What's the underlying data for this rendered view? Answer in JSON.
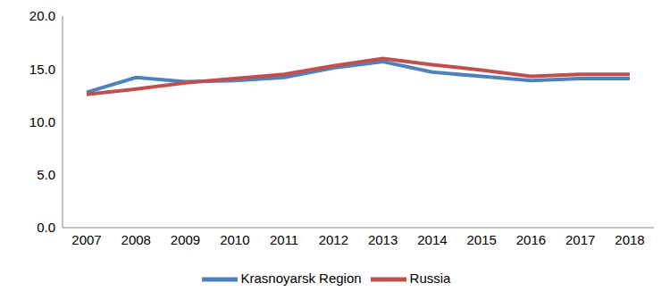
{
  "chart_data": {
    "type": "line",
    "categories": [
      "2007",
      "2008",
      "2009",
      "2010",
      "2011",
      "2012",
      "2013",
      "2014",
      "2015",
      "2016",
      "2017",
      "2018"
    ],
    "series": [
      {
        "name": "Krasnoyarsk Region",
        "color": "#4f81bd",
        "values": [
          12.8,
          14.2,
          13.8,
          13.9,
          14.2,
          15.1,
          15.7,
          14.7,
          14.3,
          13.9,
          14.1,
          14.1
        ]
      },
      {
        "name": "Russia",
        "color": "#c0504d",
        "values": [
          12.6,
          13.1,
          13.7,
          14.1,
          14.5,
          15.3,
          16.0,
          15.4,
          14.9,
          14.3,
          14.5,
          14.5
        ]
      }
    ],
    "ylim": [
      0,
      20
    ],
    "yticks": [
      {
        "value": 0,
        "label": "0.0"
      },
      {
        "value": 5,
        "label": "5.0"
      },
      {
        "value": 10,
        "label": "10.0"
      },
      {
        "value": 15,
        "label": "15.0"
      },
      {
        "value": 20,
        "label": "20.0"
      }
    ],
    "grid": false,
    "legend": "bottom"
  }
}
